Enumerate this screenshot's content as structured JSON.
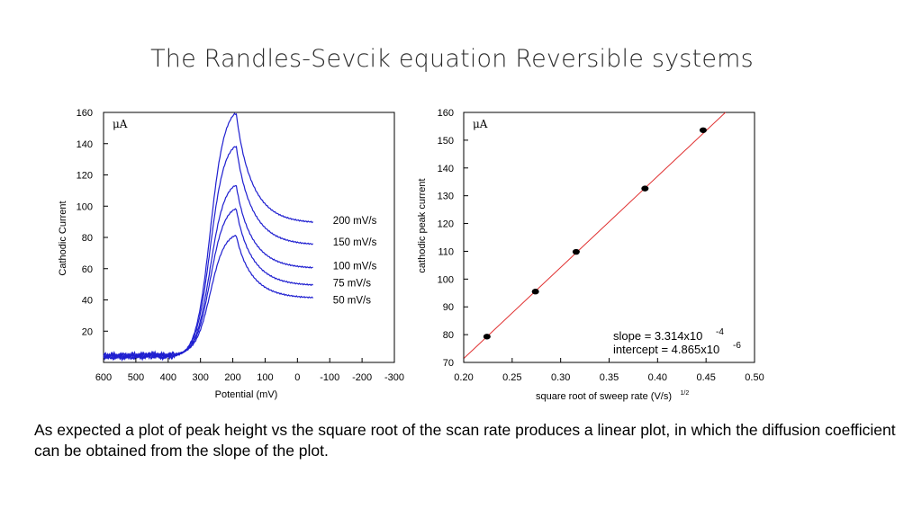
{
  "page": {
    "title": "The Randles-Sevcik equation Reversible systems",
    "caption": "As expected a plot of peak height vs the square root of the scan rate produces a linear plot, in which the diffusion coefficient can be obtained from the slope of the plot."
  },
  "chart_data": [
    {
      "type": "line",
      "unit_label": "μA",
      "xlabel": "Potential (mV)",
      "ylabel": "Cathodic Current",
      "xlim": [
        600,
        -300
      ],
      "ylim": [
        0,
        160
      ],
      "x_reversed": true,
      "xticks": [
        "600",
        "500",
        "400",
        "300",
        "200",
        "100",
        "0",
        "-100",
        "-200",
        "-300"
      ],
      "xtick_values": [
        600,
        500,
        400,
        300,
        200,
        100,
        0,
        -100,
        -200,
        -300
      ],
      "yticks": [
        "20",
        "40",
        "60",
        "80",
        "100",
        "120",
        "140",
        "160"
      ],
      "ytick_values": [
        20,
        40,
        60,
        80,
        100,
        120,
        140,
        160
      ],
      "color": "#1f1fd0",
      "series": [
        {
          "name": "200 mV/s",
          "peak_x": 195,
          "peak_y": 159,
          "end_y": 89,
          "label_y": 91
        },
        {
          "name": "150 mV/s",
          "peak_x": 195,
          "peak_y": 138,
          "end_y": 75,
          "label_y": 77
        },
        {
          "name": "100 mV/s",
          "peak_x": 195,
          "peak_y": 113,
          "end_y": 60,
          "label_y": 62
        },
        {
          "name": "75 mV/s",
          "peak_x": 195,
          "peak_y": 98,
          "end_y": 49,
          "label_y": 51
        },
        {
          "name": "50 mV/s",
          "peak_x": 195,
          "peak_y": 81,
          "end_y": 41,
          "label_y": 40
        }
      ]
    },
    {
      "type": "scatter",
      "unit_label": "μA",
      "xlabel": "square root of sweep rate (V/s)",
      "xlabel_sup": "1/2",
      "ylabel": "cathodic peak current",
      "xlim": [
        0.2,
        0.5
      ],
      "ylim": [
        70,
        160
      ],
      "xticks": [
        "0.20",
        "0.25",
        "0.30",
        "0.35",
        "0.40",
        "0.45",
        "0.50"
      ],
      "xtick_values": [
        0.2,
        0.25,
        0.3,
        0.35,
        0.4,
        0.45,
        0.5
      ],
      "yticks": [
        "70",
        "80",
        "90",
        "100",
        "110",
        "120",
        "130",
        "140",
        "150",
        "160"
      ],
      "ytick_values": [
        70,
        80,
        90,
        100,
        110,
        120,
        130,
        140,
        150,
        160
      ],
      "points": [
        {
          "x": 0.224,
          "y": 79.3
        },
        {
          "x": 0.274,
          "y": 95.5
        },
        {
          "x": 0.316,
          "y": 109.8
        },
        {
          "x": 0.387,
          "y": 132.6
        },
        {
          "x": 0.447,
          "y": 153.6
        }
      ],
      "fit_line": {
        "color": "#e03030",
        "x": [
          0.2,
          0.47
        ],
        "y": [
          71.4,
          160
        ]
      },
      "annotations": {
        "slope_text": "slope = 3.314x10",
        "slope_exp": "-4",
        "intercept_text": "intercept = 4.865x10",
        "intercept_exp": "-6"
      }
    }
  ]
}
